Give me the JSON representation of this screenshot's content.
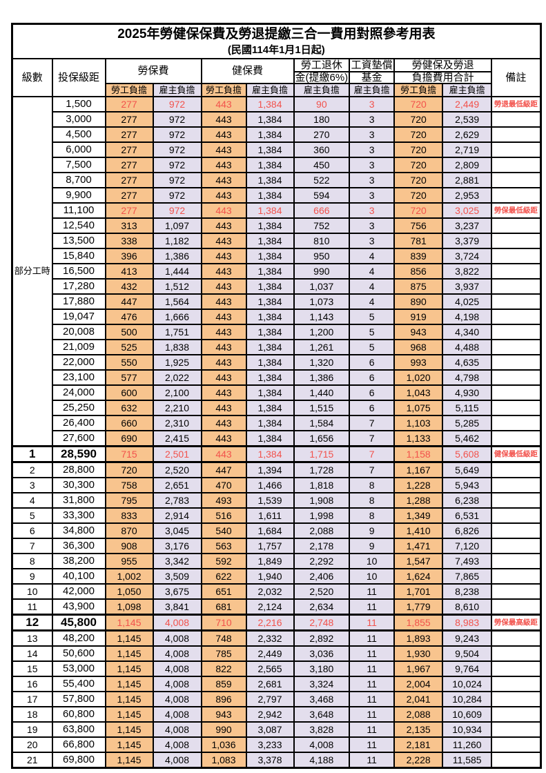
{
  "title": "2025年勞健保保費及勞退提繳三合一費用對照參考用表",
  "subtitle": "(民國114年1月1日起)",
  "colors": {
    "employee_bg": "#F8C48E",
    "employer_bg": "#E3DEED",
    "highlight_red": "#F2524C"
  },
  "header": {
    "level": "級數",
    "bracket": "投保級距",
    "labor_insurance": "勞保費",
    "health_insurance": "健保費",
    "pension_top": "勞工退休",
    "pension_bottom": "金(提繳6%)",
    "fund_top": "工資墊償",
    "fund_bottom": "基金",
    "total_top": "勞健保及勞退",
    "total_bottom": "負擔費用合計",
    "remark": "備註",
    "employee": "勞工負擔",
    "employer": "雇主負擔"
  },
  "part_time_label": "部分工時",
  "part_time_rowspan": 23,
  "rows": [
    {
      "lv": "",
      "br": "1,500",
      "v": [
        "277",
        "972",
        "443",
        "1,384",
        "90",
        "3",
        "720",
        "2,449"
      ],
      "rm": "勞退最低級距",
      "red": true,
      "bold": false
    },
    {
      "lv": "",
      "br": "3,000",
      "v": [
        "277",
        "972",
        "443",
        "1,384",
        "180",
        "3",
        "720",
        "2,539"
      ],
      "rm": "",
      "red": false,
      "bold": false
    },
    {
      "lv": "",
      "br": "4,500",
      "v": [
        "277",
        "972",
        "443",
        "1,384",
        "270",
        "3",
        "720",
        "2,629"
      ],
      "rm": "",
      "red": false,
      "bold": false
    },
    {
      "lv": "",
      "br": "6,000",
      "v": [
        "277",
        "972",
        "443",
        "1,384",
        "360",
        "3",
        "720",
        "2,719"
      ],
      "rm": "",
      "red": false,
      "bold": false
    },
    {
      "lv": "",
      "br": "7,500",
      "v": [
        "277",
        "972",
        "443",
        "1,384",
        "450",
        "3",
        "720",
        "2,809"
      ],
      "rm": "",
      "red": false,
      "bold": false
    },
    {
      "lv": "",
      "br": "8,700",
      "v": [
        "277",
        "972",
        "443",
        "1,384",
        "522",
        "3",
        "720",
        "2,881"
      ],
      "rm": "",
      "red": false,
      "bold": false
    },
    {
      "lv": "",
      "br": "9,900",
      "v": [
        "277",
        "972",
        "443",
        "1,384",
        "594",
        "3",
        "720",
        "2,953"
      ],
      "rm": "",
      "red": false,
      "bold": false
    },
    {
      "lv": "",
      "br": "11,100",
      "v": [
        "277",
        "972",
        "443",
        "1,384",
        "666",
        "3",
        "720",
        "3,025"
      ],
      "rm": "勞保最低級距",
      "red": true,
      "bold": false
    },
    {
      "lv": "",
      "br": "12,540",
      "v": [
        "313",
        "1,097",
        "443",
        "1,384",
        "752",
        "3",
        "756",
        "3,237"
      ],
      "rm": "",
      "red": false,
      "bold": false
    },
    {
      "lv": "",
      "br": "13,500",
      "v": [
        "338",
        "1,182",
        "443",
        "1,384",
        "810",
        "3",
        "781",
        "3,379"
      ],
      "rm": "",
      "red": false,
      "bold": false
    },
    {
      "lv": "",
      "br": "15,840",
      "v": [
        "396",
        "1,386",
        "443",
        "1,384",
        "950",
        "4",
        "839",
        "3,724"
      ],
      "rm": "",
      "red": false,
      "bold": false
    },
    {
      "lv": "",
      "br": "16,500",
      "v": [
        "413",
        "1,444",
        "443",
        "1,384",
        "990",
        "4",
        "856",
        "3,822"
      ],
      "rm": "",
      "red": false,
      "bold": false
    },
    {
      "lv": "",
      "br": "17,280",
      "v": [
        "432",
        "1,512",
        "443",
        "1,384",
        "1,037",
        "4",
        "875",
        "3,937"
      ],
      "rm": "",
      "red": false,
      "bold": false
    },
    {
      "lv": "",
      "br": "17,880",
      "v": [
        "447",
        "1,564",
        "443",
        "1,384",
        "1,073",
        "4",
        "890",
        "4,025"
      ],
      "rm": "",
      "red": false,
      "bold": false
    },
    {
      "lv": "",
      "br": "19,047",
      "v": [
        "476",
        "1,666",
        "443",
        "1,384",
        "1,143",
        "5",
        "919",
        "4,198"
      ],
      "rm": "",
      "red": false,
      "bold": false
    },
    {
      "lv": "",
      "br": "20,008",
      "v": [
        "500",
        "1,751",
        "443",
        "1,384",
        "1,200",
        "5",
        "943",
        "4,340"
      ],
      "rm": "",
      "red": false,
      "bold": false
    },
    {
      "lv": "",
      "br": "21,009",
      "v": [
        "525",
        "1,838",
        "443",
        "1,384",
        "1,261",
        "5",
        "968",
        "4,488"
      ],
      "rm": "",
      "red": false,
      "bold": false
    },
    {
      "lv": "",
      "br": "22,000",
      "v": [
        "550",
        "1,925",
        "443",
        "1,384",
        "1,320",
        "6",
        "993",
        "4,635"
      ],
      "rm": "",
      "red": false,
      "bold": false
    },
    {
      "lv": "",
      "br": "23,100",
      "v": [
        "577",
        "2,022",
        "443",
        "1,384",
        "1,386",
        "6",
        "1,020",
        "4,798"
      ],
      "rm": "",
      "red": false,
      "bold": false
    },
    {
      "lv": "",
      "br": "24,000",
      "v": [
        "600",
        "2,100",
        "443",
        "1,384",
        "1,440",
        "6",
        "1,043",
        "4,930"
      ],
      "rm": "",
      "red": false,
      "bold": false
    },
    {
      "lv": "",
      "br": "25,250",
      "v": [
        "632",
        "2,210",
        "443",
        "1,384",
        "1,515",
        "6",
        "1,075",
        "5,115"
      ],
      "rm": "",
      "red": false,
      "bold": false
    },
    {
      "lv": "",
      "br": "26,400",
      "v": [
        "660",
        "2,310",
        "443",
        "1,384",
        "1,584",
        "7",
        "1,103",
        "5,285"
      ],
      "rm": "",
      "red": false,
      "bold": false
    },
    {
      "lv": "",
      "br": "27,600",
      "v": [
        "690",
        "2,415",
        "443",
        "1,384",
        "1,656",
        "7",
        "1,133",
        "5,462"
      ],
      "rm": "",
      "red": false,
      "bold": false
    },
    {
      "lv": "1",
      "br": "28,590",
      "v": [
        "715",
        "2,501",
        "443",
        "1,384",
        "1,715",
        "7",
        "1,158",
        "5,608"
      ],
      "rm": "健保最低級距",
      "red": true,
      "bold": true
    },
    {
      "lv": "2",
      "br": "28,800",
      "v": [
        "720",
        "2,520",
        "447",
        "1,394",
        "1,728",
        "7",
        "1,167",
        "5,649"
      ],
      "rm": "",
      "red": false,
      "bold": false
    },
    {
      "lv": "3",
      "br": "30,300",
      "v": [
        "758",
        "2,651",
        "470",
        "1,466",
        "1,818",
        "8",
        "1,228",
        "5,943"
      ],
      "rm": "",
      "red": false,
      "bold": false
    },
    {
      "lv": "4",
      "br": "31,800",
      "v": [
        "795",
        "2,783",
        "493",
        "1,539",
        "1,908",
        "8",
        "1,288",
        "6,238"
      ],
      "rm": "",
      "red": false,
      "bold": false
    },
    {
      "lv": "5",
      "br": "33,300",
      "v": [
        "833",
        "2,914",
        "516",
        "1,611",
        "1,998",
        "8",
        "1,349",
        "6,531"
      ],
      "rm": "",
      "red": false,
      "bold": false
    },
    {
      "lv": "6",
      "br": "34,800",
      "v": [
        "870",
        "3,045",
        "540",
        "1,684",
        "2,088",
        "9",
        "1,410",
        "6,826"
      ],
      "rm": "",
      "red": false,
      "bold": false
    },
    {
      "lv": "7",
      "br": "36,300",
      "v": [
        "908",
        "3,176",
        "563",
        "1,757",
        "2,178",
        "9",
        "1,471",
        "7,120"
      ],
      "rm": "",
      "red": false,
      "bold": false
    },
    {
      "lv": "8",
      "br": "38,200",
      "v": [
        "955",
        "3,342",
        "592",
        "1,849",
        "2,292",
        "10",
        "1,547",
        "7,493"
      ],
      "rm": "",
      "red": false,
      "bold": false
    },
    {
      "lv": "9",
      "br": "40,100",
      "v": [
        "1,002",
        "3,509",
        "622",
        "1,940",
        "2,406",
        "10",
        "1,624",
        "7,865"
      ],
      "rm": "",
      "red": false,
      "bold": false
    },
    {
      "lv": "10",
      "br": "42,000",
      "v": [
        "1,050",
        "3,675",
        "651",
        "2,032",
        "2,520",
        "11",
        "1,701",
        "8,238"
      ],
      "rm": "",
      "red": false,
      "bold": false
    },
    {
      "lv": "11",
      "br": "43,900",
      "v": [
        "1,098",
        "3,841",
        "681",
        "2,124",
        "2,634",
        "11",
        "1,779",
        "8,610"
      ],
      "rm": "",
      "red": false,
      "bold": false
    },
    {
      "lv": "12",
      "br": "45,800",
      "v": [
        "1,145",
        "4,008",
        "710",
        "2,216",
        "2,748",
        "11",
        "1,855",
        "8,983"
      ],
      "rm": "勞保最高級距",
      "red": true,
      "bold": true
    },
    {
      "lv": "13",
      "br": "48,200",
      "v": [
        "1,145",
        "4,008",
        "748",
        "2,332",
        "2,892",
        "11",
        "1,893",
        "9,243"
      ],
      "rm": "",
      "red": false,
      "bold": false
    },
    {
      "lv": "14",
      "br": "50,600",
      "v": [
        "1,145",
        "4,008",
        "785",
        "2,449",
        "3,036",
        "11",
        "1,930",
        "9,504"
      ],
      "rm": "",
      "red": false,
      "bold": false
    },
    {
      "lv": "15",
      "br": "53,000",
      "v": [
        "1,145",
        "4,008",
        "822",
        "2,565",
        "3,180",
        "11",
        "1,967",
        "9,764"
      ],
      "rm": "",
      "red": false,
      "bold": false
    },
    {
      "lv": "16",
      "br": "55,400",
      "v": [
        "1,145",
        "4,008",
        "859",
        "2,681",
        "3,324",
        "11",
        "2,004",
        "10,024"
      ],
      "rm": "",
      "red": false,
      "bold": false
    },
    {
      "lv": "17",
      "br": "57,800",
      "v": [
        "1,145",
        "4,008",
        "896",
        "2,797",
        "3,468",
        "11",
        "2,041",
        "10,284"
      ],
      "rm": "",
      "red": false,
      "bold": false
    },
    {
      "lv": "18",
      "br": "60,800",
      "v": [
        "1,145",
        "4,008",
        "943",
        "2,942",
        "3,648",
        "11",
        "2,088",
        "10,609"
      ],
      "rm": "",
      "red": false,
      "bold": false
    },
    {
      "lv": "19",
      "br": "63,800",
      "v": [
        "1,145",
        "4,008",
        "990",
        "3,087",
        "3,828",
        "11",
        "2,135",
        "10,934"
      ],
      "rm": "",
      "red": false,
      "bold": false
    },
    {
      "lv": "20",
      "br": "66,800",
      "v": [
        "1,145",
        "4,008",
        "1,036",
        "3,233",
        "4,008",
        "11",
        "2,181",
        "11,260"
      ],
      "rm": "",
      "red": false,
      "bold": false
    },
    {
      "lv": "21",
      "br": "69,800",
      "v": [
        "1,145",
        "4,008",
        "1,083",
        "3,378",
        "4,188",
        "11",
        "2,228",
        "11,585"
      ],
      "rm": "",
      "red": false,
      "bold": false
    }
  ],
  "value_column_names": [
    "labor-employee",
    "labor-employer",
    "health-employee",
    "health-employer",
    "pension-employer",
    "fund-employer",
    "total-employee",
    "total-employer"
  ]
}
